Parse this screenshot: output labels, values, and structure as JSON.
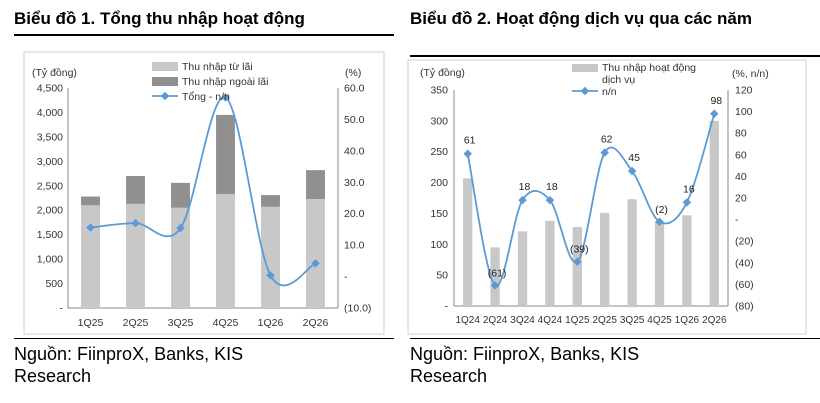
{
  "charts": [
    {
      "title": "Biểu đồ 1. Tổng thu nhập hoạt động",
      "source": "Nguồn: FiinproX, Banks, KIS Research"
    },
    {
      "title": "Biểu đồ 2. Hoạt động dịch vụ qua các năm",
      "source": "Nguồn: FiinproX, Banks, KIS Research"
    }
  ],
  "chart_data": [
    {
      "type": "bar",
      "stacked": true,
      "title": "Biểu đồ 1. Tổng thu nhập hoạt động",
      "categories": [
        "1Q25",
        "2Q25",
        "3Q25",
        "4Q25",
        "1Q26",
        "2Q26"
      ],
      "series": [
        {
          "name": "Thu nhập từ lãi",
          "type": "bar",
          "axis": "left",
          "color": "#c8c8c8",
          "values": [
            2100,
            2130,
            2050,
            2330,
            2070,
            2230
          ]
        },
        {
          "name": "Thu nhập ngoài lãi",
          "type": "bar",
          "axis": "left",
          "color": "#909090",
          "values": [
            180,
            570,
            510,
            1620,
            240,
            590
          ]
        },
        {
          "name": "Tổng - n/n",
          "type": "line",
          "axis": "right",
          "color": "#5b9bd5",
          "values": [
            15.6,
            17.0,
            15.4,
            57.0,
            0.4,
            4.2
          ]
        }
      ],
      "left_axis": {
        "unit": "(Tỷ đồng)",
        "ylim": [
          0,
          4500
        ],
        "ticks": [
          "4,500",
          "4,000",
          "3,500",
          "3,000",
          "2,500",
          "2,000",
          "1,500",
          "1,000",
          "500",
          "-"
        ]
      },
      "right_axis": {
        "unit": "(%)",
        "ylim": [
          -10,
          60
        ],
        "ticks": [
          "60.0",
          "50.0",
          "40.0",
          "30.0",
          "20.0",
          "10.0",
          "-",
          "(10.0)"
        ]
      },
      "legend_position": "top-center",
      "grid": false
    },
    {
      "type": "bar",
      "title": "Biểu đồ 2. Hoạt động dịch vụ qua các năm",
      "categories": [
        "1Q24",
        "2Q24",
        "3Q24",
        "4Q24",
        "1Q25",
        "2Q25",
        "3Q25",
        "4Q25",
        "1Q26",
        "2Q26"
      ],
      "series": [
        {
          "name": "Thu nhập hoạt động dịch vụ",
          "type": "bar",
          "axis": "left",
          "color": "#c8c8c8",
          "values": [
            207,
            95,
            121,
            138,
            128,
            151,
            173,
            137,
            147,
            300
          ]
        },
        {
          "name": "n/n",
          "type": "line",
          "axis": "right",
          "color": "#5b9bd5",
          "values": [
            61,
            -61,
            18,
            18,
            -39,
            62,
            45,
            -2,
            16,
            98
          ]
        }
      ],
      "data_labels": [
        "61",
        "(61)",
        "18",
        "18",
        "(39)",
        "62",
        "45",
        "(2)",
        "16",
        "98"
      ],
      "left_axis": {
        "unit": "(Tỷ đồng)",
        "ylim": [
          0,
          350
        ],
        "ticks": [
          "350",
          "300",
          "250",
          "200",
          "150",
          "100",
          "50",
          "-"
        ]
      },
      "right_axis": {
        "unit": "(%, n/n)",
        "ylim": [
          -80,
          120
        ],
        "ticks": [
          "120",
          "100",
          "80",
          "60",
          "40",
          "20",
          "-",
          "(20)",
          "(40)",
          "(60)",
          "(80)"
        ]
      },
      "legend_position": "top-right",
      "grid": false
    }
  ]
}
